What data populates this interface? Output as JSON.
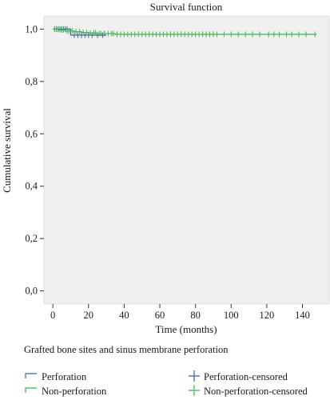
{
  "chart_data": {
    "type": "line",
    "title": "Survival function",
    "xlabel": "Time (months)",
    "ylabel": "Cumulative survival",
    "xlim": [
      -5,
      155
    ],
    "ylim": [
      -0.05,
      1.05
    ],
    "x_ticks": [
      0,
      20,
      40,
      60,
      80,
      100,
      120,
      140
    ],
    "y_ticks": [
      0.0,
      0.2,
      0.4,
      0.6,
      0.8,
      1.0
    ],
    "x_tick_labels": [
      "0",
      "20",
      "40",
      "60",
      "80",
      "100",
      "120",
      "140"
    ],
    "y_tick_labels": [
      "0,0",
      "0,2",
      "0,4",
      "0,6",
      "0,8",
      "1,0"
    ],
    "grid": false,
    "plot_background": "#f0f0f0",
    "legend": {
      "title": "Grafted bone sites and sinus membrane perforation",
      "placement": "bottom",
      "entries": [
        "Perforation",
        "Non-perforation",
        "Perforation-censored",
        "Non-perforation-censored"
      ]
    },
    "series": [
      {
        "name": "Perforation",
        "color": "#3b5fa8",
        "step_x": [
          0,
          10,
          30
        ],
        "step_y": [
          1.0,
          0.977,
          0.977
        ],
        "censored_x": [
          1,
          2,
          3,
          4,
          5,
          6,
          7,
          8,
          12,
          14,
          16,
          18,
          20,
          22,
          25,
          28
        ]
      },
      {
        "name": "Non-perforation",
        "color": "#3ab54a",
        "step_x": [
          0,
          3,
          7,
          12,
          16,
          20,
          25,
          35,
          148
        ],
        "step_y": [
          1.0,
          0.997,
          0.993,
          0.99,
          0.987,
          0.985,
          0.983,
          0.98,
          0.98
        ],
        "censored_x": [
          1,
          2,
          4,
          5,
          6,
          8,
          9,
          11,
          13,
          15,
          17,
          19,
          21,
          23,
          24,
          26,
          27,
          29,
          31,
          33,
          34,
          36,
          38,
          40,
          42,
          44,
          46,
          48,
          50,
          52,
          54,
          56,
          58,
          60,
          62,
          64,
          66,
          68,
          70,
          72,
          74,
          76,
          78,
          80,
          82,
          84,
          86,
          88,
          90,
          92,
          96,
          100,
          104,
          108,
          112,
          116,
          121,
          124,
          127,
          131,
          134,
          138,
          142,
          147
        ]
      }
    ]
  },
  "colors": {
    "perforation": "#3b5fa8",
    "non_perforation": "#3ab54a",
    "plot_background": "#f0f0f0"
  }
}
